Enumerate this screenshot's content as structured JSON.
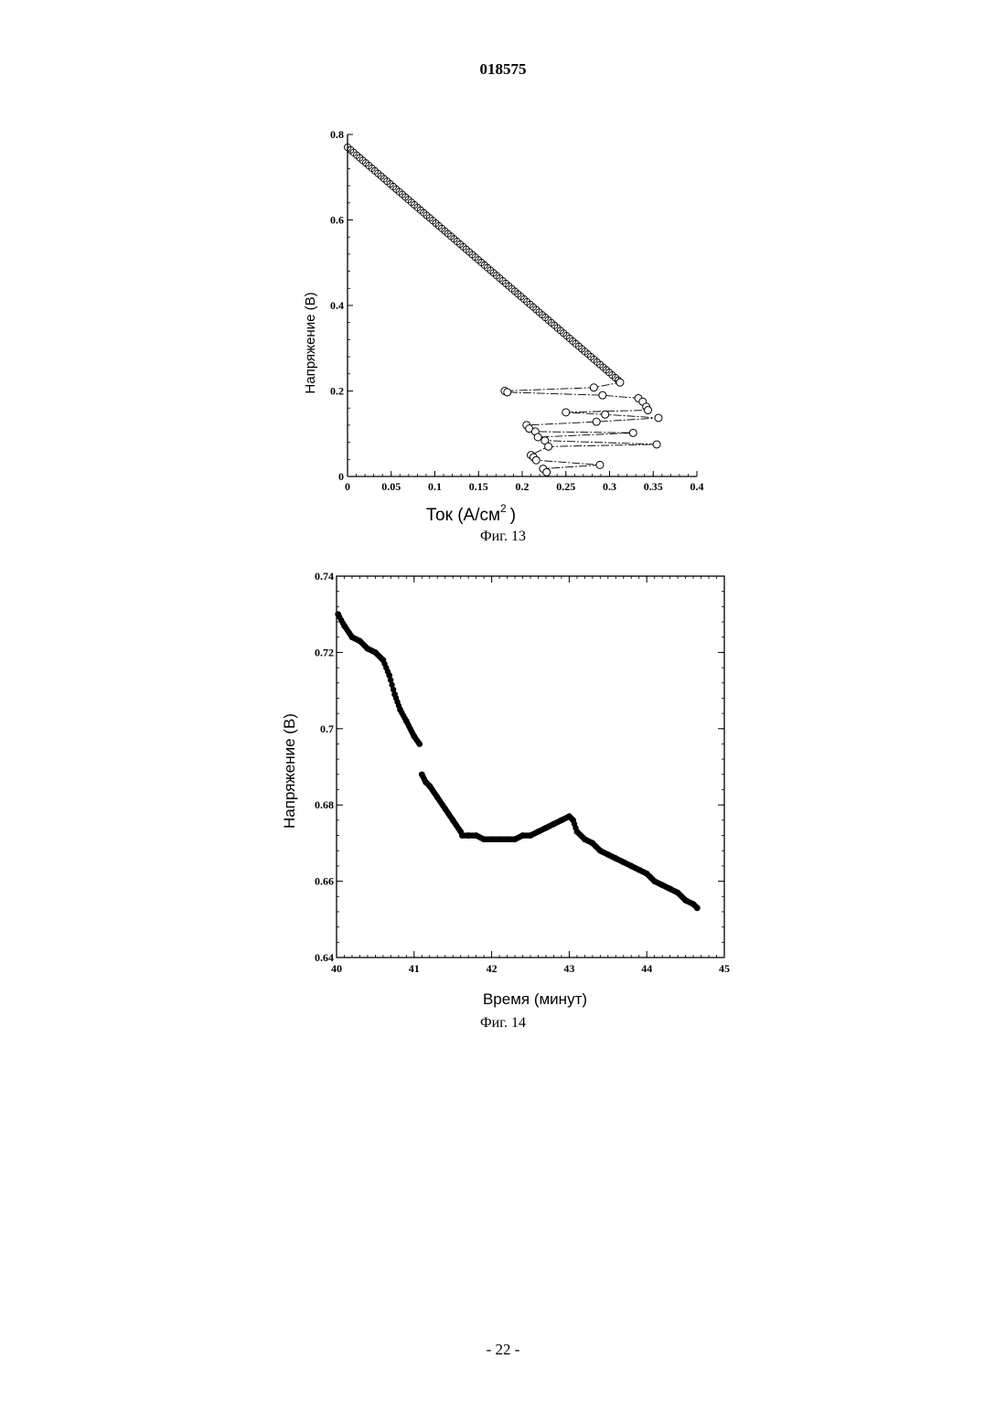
{
  "document": {
    "number": "018575",
    "page_label": "- 22 -"
  },
  "chart_data": [
    {
      "type": "scatter",
      "caption": "Фиг. 13",
      "title": "",
      "xlabel": "Ток (А/см",
      "xlabel_sup": "2",
      "xlabel_end": ")",
      "ylabel": "Напряжение (В)",
      "xlim": [
        0,
        0.4
      ],
      "ylim": [
        0,
        0.8
      ],
      "xticks": [
        "0",
        "0.05",
        "0.1",
        "0.15",
        "0.2",
        "0.25",
        "0.3",
        "0.35",
        "0.4"
      ],
      "yticks": [
        "0",
        "0.2",
        "0.4",
        "0.6",
        "0.8"
      ],
      "grid": false,
      "marker": "open-circle",
      "linear_segment": {
        "x": [
          0.0,
          0.31
        ],
        "y": [
          0.77,
          0.225
        ]
      },
      "tail_points": [
        {
          "x": 0.312,
          "y": 0.22
        },
        {
          "x": 0.282,
          "y": 0.208
        },
        {
          "x": 0.18,
          "y": 0.2
        },
        {
          "x": 0.183,
          "y": 0.197
        },
        {
          "x": 0.292,
          "y": 0.19
        },
        {
          "x": 0.333,
          "y": 0.183
        },
        {
          "x": 0.338,
          "y": 0.175
        },
        {
          "x": 0.342,
          "y": 0.163
        },
        {
          "x": 0.344,
          "y": 0.155
        },
        {
          "x": 0.25,
          "y": 0.15
        },
        {
          "x": 0.295,
          "y": 0.145
        },
        {
          "x": 0.356,
          "y": 0.137
        },
        {
          "x": 0.285,
          "y": 0.128
        },
        {
          "x": 0.205,
          "y": 0.12
        },
        {
          "x": 0.208,
          "y": 0.112
        },
        {
          "x": 0.215,
          "y": 0.105
        },
        {
          "x": 0.327,
          "y": 0.102
        },
        {
          "x": 0.218,
          "y": 0.092
        },
        {
          "x": 0.226,
          "y": 0.084
        },
        {
          "x": 0.354,
          "y": 0.075
        },
        {
          "x": 0.23,
          "y": 0.07
        },
        {
          "x": 0.21,
          "y": 0.05
        },
        {
          "x": 0.213,
          "y": 0.045
        },
        {
          "x": 0.216,
          "y": 0.038
        },
        {
          "x": 0.289,
          "y": 0.027
        },
        {
          "x": 0.224,
          "y": 0.018
        },
        {
          "x": 0.228,
          "y": 0.01
        }
      ]
    },
    {
      "type": "scatter",
      "caption": "Фиг. 14",
      "title": "",
      "xlabel": "Время (минут)",
      "ylabel": "Напряжение (В)",
      "xlim": [
        40,
        45
      ],
      "ylim": [
        0.64,
        0.74
      ],
      "xticks": [
        "40",
        "41",
        "42",
        "43",
        "44",
        "45"
      ],
      "yticks": [
        "0.64",
        "0.66",
        "0.68",
        "0.7",
        "0.72",
        "0.74"
      ],
      "grid": false,
      "marker": "filled-circle",
      "x": [
        40.02,
        40.1,
        40.2,
        40.3,
        40.4,
        40.5,
        40.6,
        40.68,
        40.75,
        40.82,
        40.9,
        41.0,
        41.07,
        41.1,
        41.15,
        41.2,
        41.3,
        41.4,
        41.5,
        41.6,
        41.62,
        41.7,
        41.8,
        41.9,
        42.0,
        42.1,
        42.2,
        42.3,
        42.4,
        42.5,
        42.6,
        42.7,
        42.8,
        42.9,
        43.0,
        43.05,
        43.1,
        43.2,
        43.3,
        43.4,
        43.5,
        43.6,
        43.7,
        43.8,
        43.9,
        44.0,
        44.1,
        44.2,
        44.3,
        44.4,
        44.5,
        44.6,
        44.65
      ],
      "y": [
        0.73,
        0.727,
        0.724,
        0.723,
        0.721,
        0.72,
        0.718,
        0.714,
        0.709,
        0.705,
        0.702,
        0.698,
        0.696,
        0.688,
        0.686,
        0.685,
        0.682,
        0.679,
        0.676,
        0.673,
        0.672,
        0.672,
        0.672,
        0.671,
        0.671,
        0.671,
        0.671,
        0.671,
        0.672,
        0.672,
        0.673,
        0.674,
        0.675,
        0.676,
        0.677,
        0.676,
        0.673,
        0.671,
        0.67,
        0.668,
        0.667,
        0.666,
        0.665,
        0.664,
        0.663,
        0.662,
        0.66,
        0.659,
        0.658,
        0.657,
        0.655,
        0.654,
        0.653
      ]
    }
  ]
}
